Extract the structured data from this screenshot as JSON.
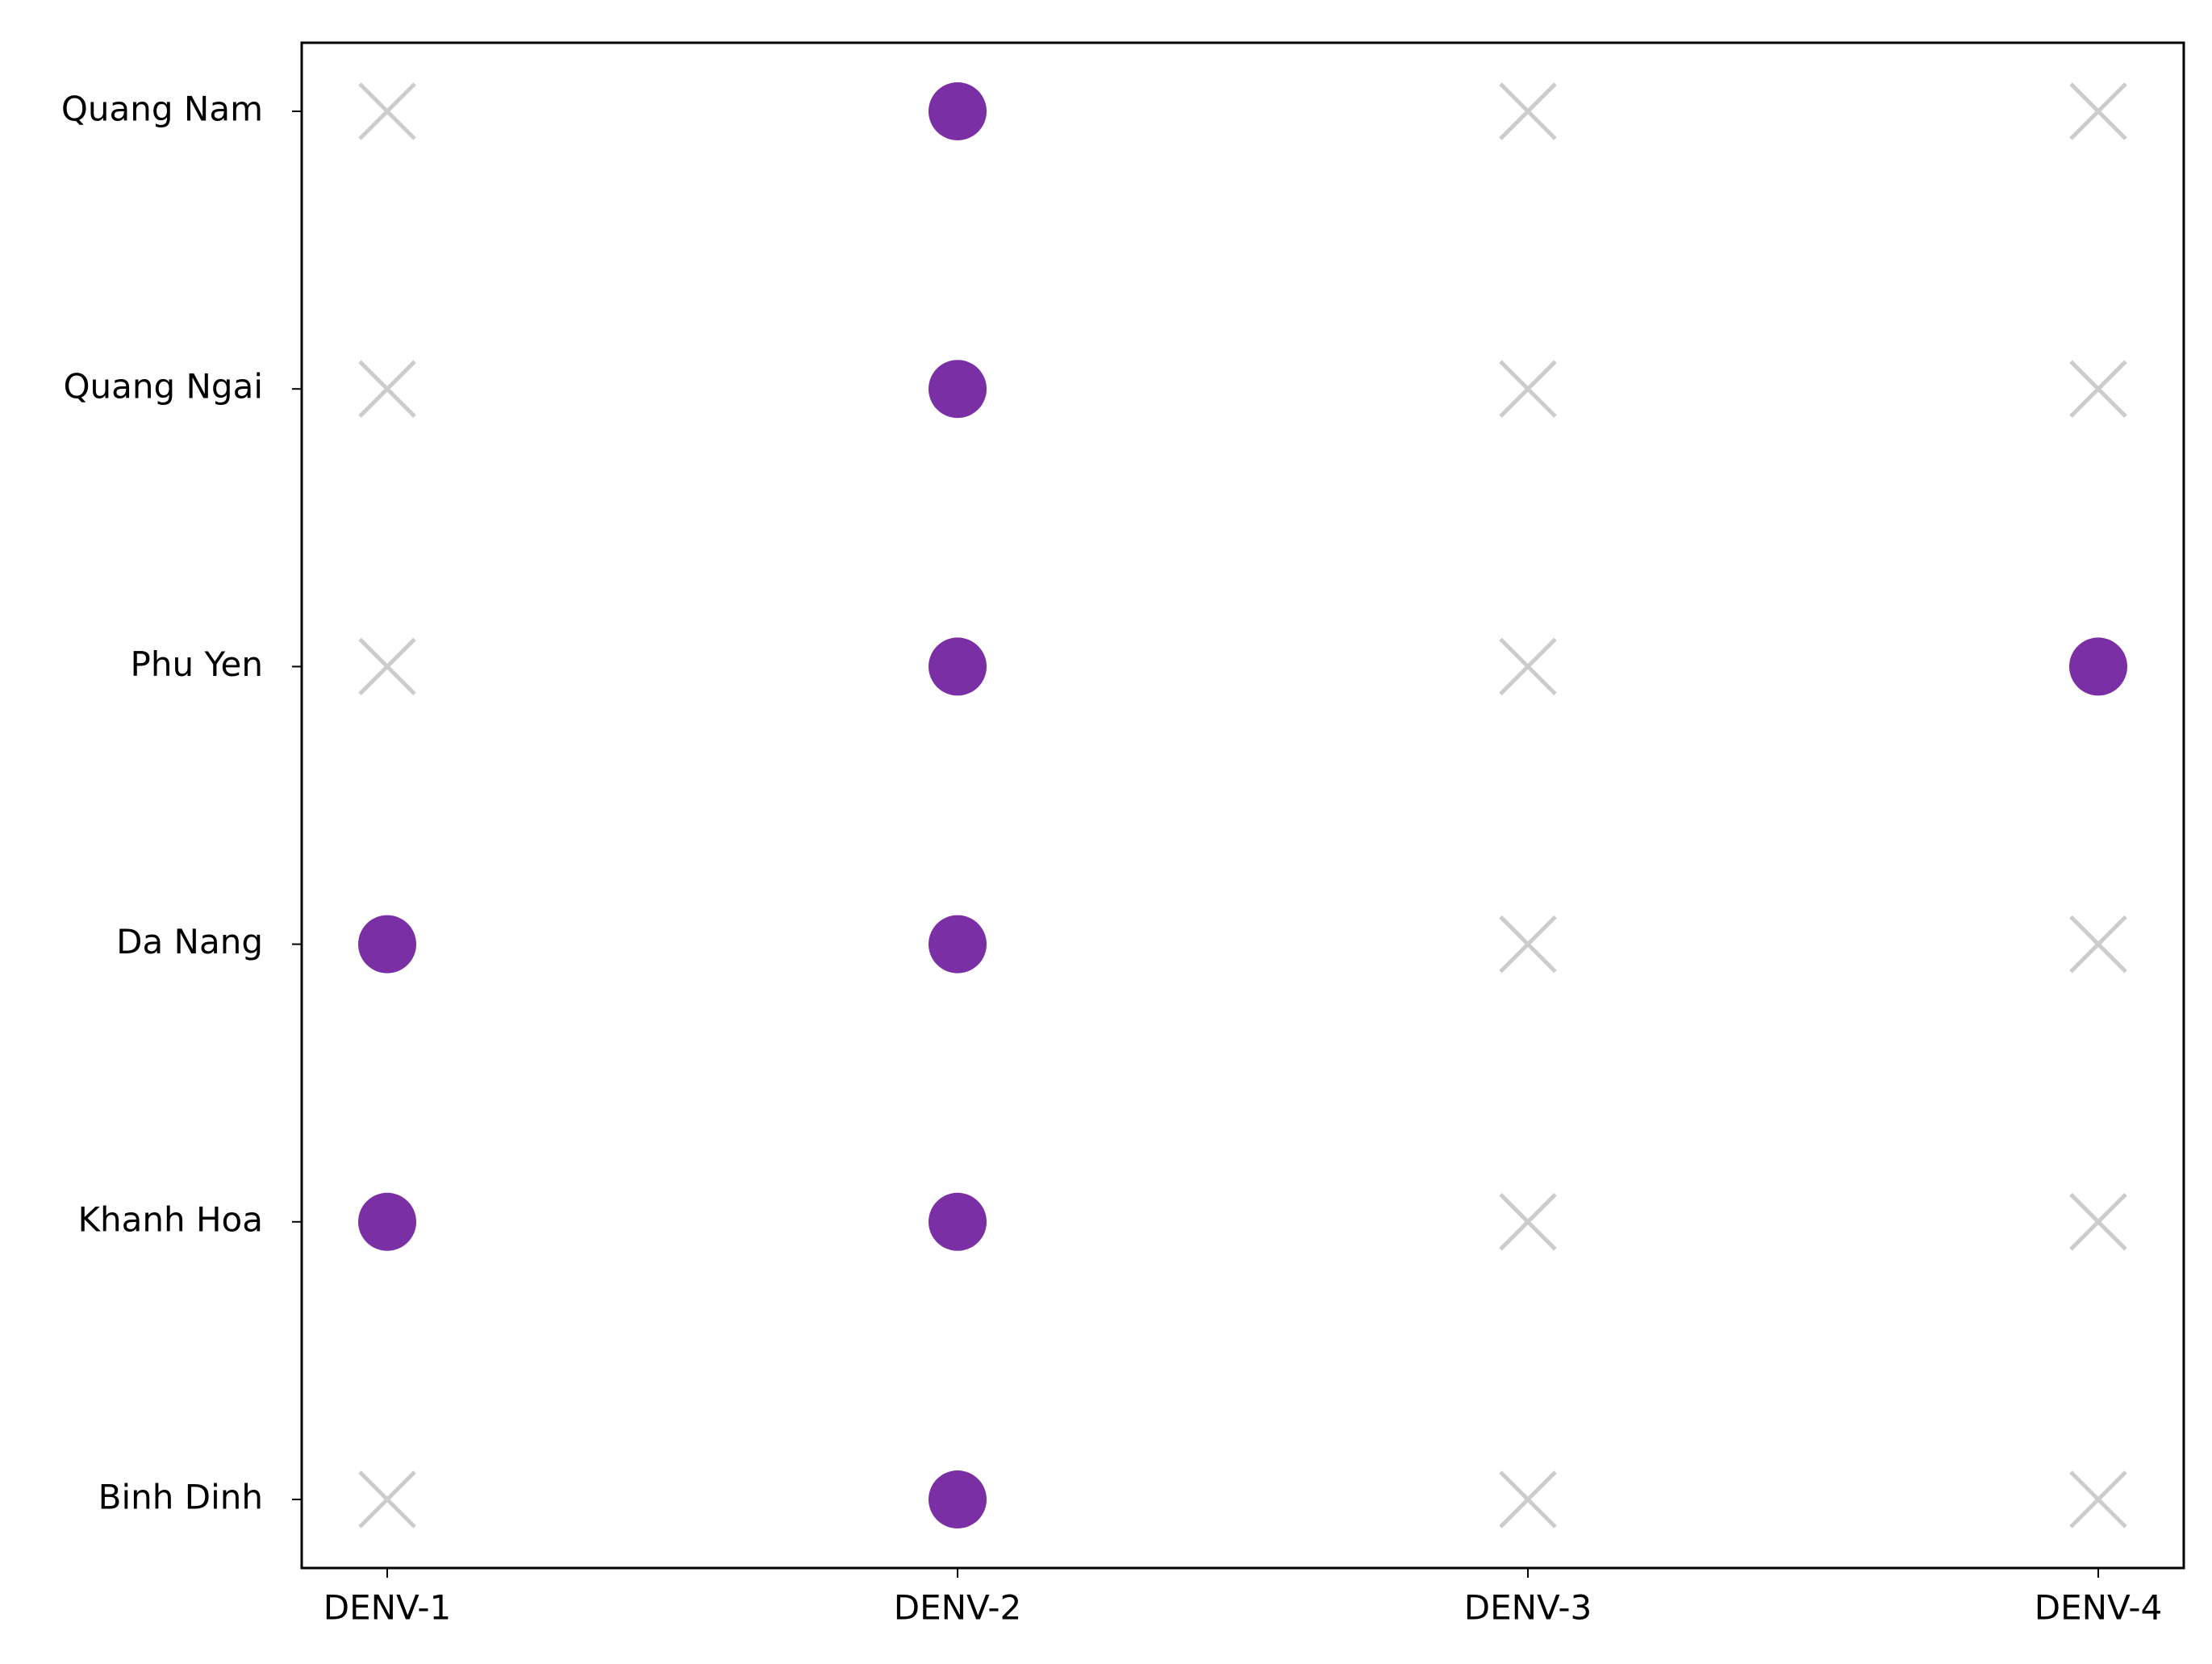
{
  "chart_data": {
    "type": "dotmatrix",
    "x_categories": [
      "DENV-1",
      "DENV-2",
      "DENV-3",
      "DENV-4"
    ],
    "y_categories": [
      "Binh Dinh",
      "Khanh Hoa",
      "Da Nang",
      "Phu Yen",
      "Quang Ngai",
      "Quang Nam"
    ],
    "values": [
      [
        0,
        1,
        0,
        0
      ],
      [
        1,
        1,
        0,
        0
      ],
      [
        1,
        1,
        0,
        0
      ],
      [
        0,
        1,
        0,
        1
      ],
      [
        0,
        1,
        0,
        0
      ],
      [
        0,
        1,
        0,
        0
      ]
    ],
    "present_color": "#7b2fa5",
    "absent_color": "#cccccc"
  }
}
